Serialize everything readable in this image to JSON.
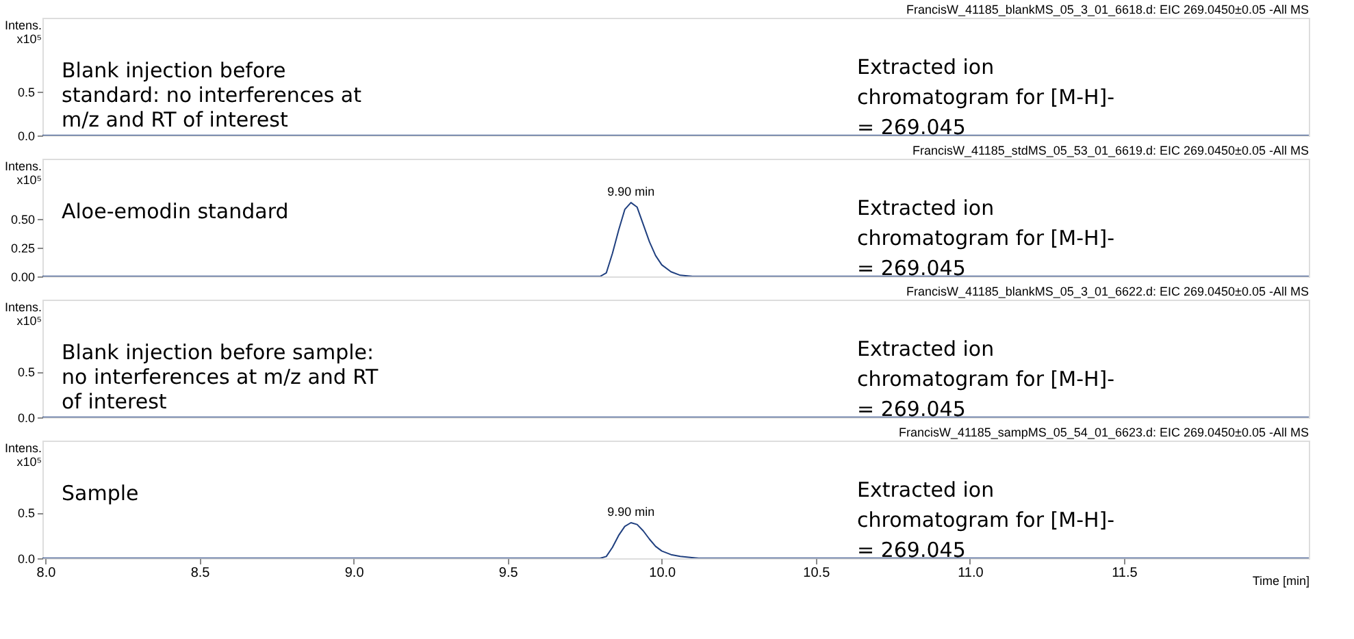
{
  "chart_data": [
    {
      "type": "line",
      "title": "FrancisW_41185_blankMS_05_3_01_6618.d: EIC 269.0450±0.05 -All MS",
      "ylabel": "Intens. x10⁵",
      "tick_labels": "y",
      "grid": false,
      "legend": false,
      "xlim": [
        7.99,
        12.1
      ],
      "ylim": [
        0,
        1.34
      ],
      "yticks": [
        {
          "value": 0,
          "label": "0.0"
        },
        {
          "value": 0.5,
          "label": "0.5"
        }
      ],
      "series": [
        {
          "color": "#1f3f7f",
          "x": [
            7.99,
            12.1
          ],
          "values": [
            0,
            0
          ]
        }
      ],
      "annotations": [
        "Blank injection before standard: no interferences at m/z and RT of interest",
        "Extracted ion chromatogram for [M-H]- = 269.045"
      ]
    },
    {
      "type": "line",
      "title": "FrancisW_41185_stdMS_05_53_01_6619.d: EIC 269.0450±0.05 -All MS",
      "ylabel": "Intens. x10⁵",
      "tick_labels": "y",
      "grid": false,
      "legend": false,
      "xlim": [
        7.99,
        12.1
      ],
      "ylim": [
        0,
        1.02
      ],
      "yticks": [
        {
          "value": 0,
          "label": "0.00"
        },
        {
          "value": 0.25,
          "label": "0.25"
        },
        {
          "value": 0.5,
          "label": "0.50"
        }
      ],
      "series": [
        {
          "color": "#1f3f7f",
          "x": [
            7.99,
            9.8,
            9.82,
            9.84,
            9.86,
            9.88,
            9.9,
            9.92,
            9.94,
            9.96,
            9.98,
            10.0,
            10.03,
            10.06,
            10.1,
            12.1
          ],
          "values": [
            0,
            0,
            0.03,
            0.2,
            0.4,
            0.58,
            0.64,
            0.6,
            0.45,
            0.3,
            0.18,
            0.1,
            0.04,
            0.01,
            0,
            0
          ]
        }
      ],
      "annotations": [
        "Aloe-emodin standard",
        "Extracted ion chromatogram for [M-H]- = 269.045",
        {
          "text": "9.90 min",
          "x": 9.9,
          "y": 0.64
        }
      ]
    },
    {
      "type": "line",
      "title": "FrancisW_41185_blankMS_05_3_01_6622.d: EIC 269.0450±0.05 -All MS",
      "ylabel": "Intens. x10⁵",
      "tick_labels": "y",
      "grid": false,
      "legend": false,
      "xlim": [
        7.99,
        12.1
      ],
      "ylim": [
        0,
        1.29
      ],
      "yticks": [
        {
          "value": 0,
          "label": "0.0"
        },
        {
          "value": 0.5,
          "label": "0.5"
        }
      ],
      "series": [
        {
          "color": "#1f3f7f",
          "x": [
            7.99,
            12.1
          ],
          "values": [
            0,
            0
          ]
        }
      ],
      "annotations": [
        "Blank injection before sample: no interferences at m/z and RT of interest",
        "Extracted ion chromatogram for [M-H]- = 269.045"
      ]
    },
    {
      "type": "line",
      "title": "FrancisW_41185_sampMS_05_54_01_6623.d: EIC 269.0450±0.05 -All MS",
      "ylabel": "Intens. x10⁵",
      "xlabel": "Time [min]",
      "grid": false,
      "legend": false,
      "xlim": [
        7.99,
        12.1
      ],
      "ylim": [
        0,
        1.29
      ],
      "yticks": [
        {
          "value": 0,
          "label": "0.0"
        },
        {
          "value": 0.5,
          "label": "0.5"
        }
      ],
      "xticks": [
        {
          "value": 8,
          "label": "8.0"
        },
        {
          "value": 8.5,
          "label": "8.5"
        },
        {
          "value": 9,
          "label": "9.0"
        },
        {
          "value": 9.5,
          "label": "9.5"
        },
        {
          "value": 10,
          "label": "10.0"
        },
        {
          "value": 10.5,
          "label": "10.5"
        },
        {
          "value": 11,
          "label": "11.0"
        },
        {
          "value": 11.5,
          "label": "11.5"
        }
      ],
      "series": [
        {
          "color": "#1f3f7f",
          "x": [
            7.99,
            9.8,
            9.82,
            9.84,
            9.86,
            9.88,
            9.9,
            9.92,
            9.94,
            9.96,
            9.98,
            10.0,
            10.03,
            10.06,
            10.12,
            12.1
          ],
          "values": [
            0,
            0,
            0.02,
            0.12,
            0.25,
            0.35,
            0.39,
            0.37,
            0.3,
            0.21,
            0.13,
            0.08,
            0.04,
            0.02,
            0,
            0
          ]
        }
      ],
      "annotations": [
        "Sample",
        "Extracted ion chromatogram for [M-H]- = 269.045",
        {
          "text": "9.90 min",
          "x": 9.9,
          "y": 0.39
        }
      ]
    }
  ]
}
